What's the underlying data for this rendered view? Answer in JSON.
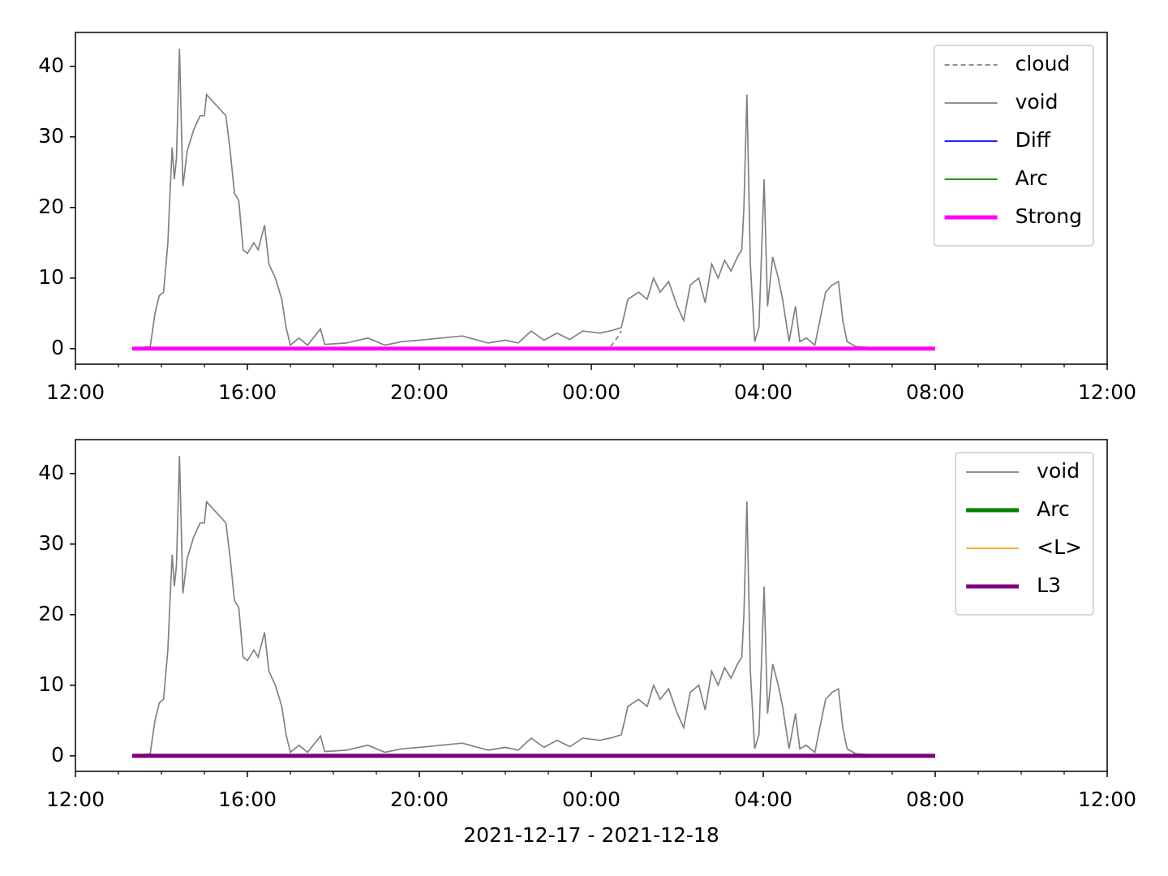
{
  "chart_data": [
    {
      "type": "line",
      "xlim": [
        12,
        36
      ],
      "xticks": [
        {
          "value": 12,
          "label": "12:00"
        },
        {
          "value": 16,
          "label": "16:00"
        },
        {
          "value": 20,
          "label": "20:00"
        },
        {
          "value": 24,
          "label": "00:00"
        },
        {
          "value": 28,
          "label": "04:00"
        },
        {
          "value": 32,
          "label": "08:00"
        },
        {
          "value": 36,
          "label": "12:00"
        }
      ],
      "xminorticks": [
        13,
        14,
        15,
        17,
        18,
        19,
        21,
        22,
        23,
        25,
        26,
        27,
        29,
        30,
        31,
        33,
        34,
        35
      ],
      "ylim": [
        -2.2,
        44.8
      ],
      "yticks": [
        0,
        10,
        20,
        30,
        40
      ],
      "legend": "upper right",
      "series": [
        {
          "name": "cloud",
          "color": "#808080",
          "linewidth": 1.2,
          "linestyle": "dashed",
          "x": [
            24.45,
            24.6,
            24.7
          ],
          "values": [
            0.3,
            1.5,
            2.5
          ]
        },
        {
          "name": "void",
          "color": "#808080",
          "linewidth": 1.2,
          "linestyle": "solid",
          "x": [
            13.32,
            13.74,
            13.85,
            13.95,
            14.05,
            14.15,
            14.2,
            14.25,
            14.3,
            14.35,
            14.42,
            14.5,
            14.6,
            14.75,
            14.9,
            15.0,
            15.05,
            15.2,
            15.35,
            15.5,
            15.6,
            15.7,
            15.8,
            15.9,
            16.0,
            16.15,
            16.25,
            16.4,
            16.5,
            16.65,
            16.8,
            16.9,
            17.0,
            17.2,
            17.4,
            17.7,
            17.8,
            18.3,
            18.8,
            19.2,
            19.6,
            20.0,
            20.5,
            21.0,
            21.3,
            21.6,
            22.0,
            22.3,
            22.6,
            22.9,
            23.2,
            23.5,
            23.8,
            24.2,
            24.5,
            24.7,
            24.85,
            25.1,
            25.3,
            25.45,
            25.6,
            25.8,
            26.0,
            26.15,
            26.3,
            26.5,
            26.65,
            26.8,
            26.95,
            27.1,
            27.25,
            27.4,
            27.5,
            27.55,
            27.62,
            27.7,
            27.8,
            27.9,
            28.02,
            28.1,
            28.22,
            28.35,
            28.45,
            28.6,
            28.75,
            28.85,
            29.0,
            29.2,
            29.45,
            29.6,
            29.75,
            29.85,
            29.95,
            30.15,
            30.6,
            31.0,
            32.0
          ],
          "values": [
            0,
            0.3,
            5,
            7.5,
            8,
            15,
            22,
            28.5,
            24,
            27,
            42.5,
            23,
            28,
            31,
            33,
            33,
            36,
            35,
            34,
            33,
            28,
            22,
            21,
            14,
            13.5,
            15,
            14,
            17.5,
            12,
            10,
            7,
            3,
            0.5,
            1.5,
            0.5,
            2.8,
            0.6,
            0.8,
            1.5,
            0.5,
            1,
            1.2,
            1.5,
            1.8,
            1.3,
            0.8,
            1.2,
            0.8,
            2.5,
            1.2,
            2.2,
            1.3,
            2.5,
            2.2,
            2.6,
            3,
            7,
            8,
            7,
            10,
            8,
            9.5,
            6,
            4,
            9,
            10,
            6.5,
            12,
            10,
            12.5,
            11,
            13,
            14,
            20,
            36,
            12,
            1,
            3,
            24,
            6,
            13,
            10,
            7,
            1,
            6,
            1,
            1.5,
            0.5,
            8,
            9,
            9.5,
            4,
            1,
            0.3,
            0.1,
            0,
            0
          ]
        },
        {
          "name": "Diff",
          "color": "#0000ff",
          "linewidth": 1.2,
          "linestyle": "solid",
          "x": [
            13.32,
            32.0
          ],
          "values": [
            0,
            0
          ]
        },
        {
          "name": "Arc",
          "color": "#008000",
          "linewidth": 1.2,
          "linestyle": "solid",
          "x": [
            13.32,
            32.0
          ],
          "values": [
            0,
            0
          ]
        },
        {
          "name": "Strong",
          "color": "#ff00ff",
          "linewidth": 3.5,
          "linestyle": "solid",
          "x": [
            13.32,
            32.0
          ],
          "values": [
            0,
            0
          ]
        }
      ]
    },
    {
      "type": "line",
      "xlabel": "2021-12-17 - 2021-12-18",
      "xlim": [
        12,
        36
      ],
      "xticks": [
        {
          "value": 12,
          "label": "12:00"
        },
        {
          "value": 16,
          "label": "16:00"
        },
        {
          "value": 20,
          "label": "20:00"
        },
        {
          "value": 24,
          "label": "00:00"
        },
        {
          "value": 28,
          "label": "04:00"
        },
        {
          "value": 32,
          "label": "08:00"
        },
        {
          "value": 36,
          "label": "12:00"
        }
      ],
      "xminorticks": [
        13,
        14,
        15,
        17,
        18,
        19,
        21,
        22,
        23,
        25,
        26,
        27,
        29,
        30,
        31,
        33,
        34,
        35
      ],
      "ylim": [
        -2.2,
        44.8
      ],
      "yticks": [
        0,
        10,
        20,
        30,
        40
      ],
      "legend": "upper right",
      "series": [
        {
          "name": "void",
          "color": "#808080",
          "linewidth": 1.2,
          "linestyle": "solid",
          "x": [
            13.32,
            13.74,
            13.85,
            13.95,
            14.05,
            14.15,
            14.2,
            14.25,
            14.3,
            14.35,
            14.42,
            14.5,
            14.6,
            14.75,
            14.9,
            15.0,
            15.05,
            15.2,
            15.35,
            15.5,
            15.6,
            15.7,
            15.8,
            15.9,
            16.0,
            16.15,
            16.25,
            16.4,
            16.5,
            16.65,
            16.8,
            16.9,
            17.0,
            17.2,
            17.4,
            17.7,
            17.8,
            18.3,
            18.8,
            19.2,
            19.6,
            20.0,
            20.5,
            21.0,
            21.3,
            21.6,
            22.0,
            22.3,
            22.6,
            22.9,
            23.2,
            23.5,
            23.8,
            24.2,
            24.5,
            24.7,
            24.85,
            25.1,
            25.3,
            25.45,
            25.6,
            25.8,
            26.0,
            26.15,
            26.3,
            26.5,
            26.65,
            26.8,
            26.95,
            27.1,
            27.25,
            27.4,
            27.5,
            27.55,
            27.62,
            27.7,
            27.8,
            27.9,
            28.02,
            28.1,
            28.22,
            28.35,
            28.45,
            28.6,
            28.75,
            28.85,
            29.0,
            29.2,
            29.45,
            29.6,
            29.75,
            29.85,
            29.95,
            30.15,
            30.6,
            31.0,
            32.0
          ],
          "values": [
            0,
            0.3,
            5,
            7.5,
            8,
            15,
            22,
            28.5,
            24,
            27,
            42.5,
            23,
            28,
            31,
            33,
            33,
            36,
            35,
            34,
            33,
            28,
            22,
            21,
            14,
            13.5,
            15,
            14,
            17.5,
            12,
            10,
            7,
            3,
            0.5,
            1.5,
            0.5,
            2.8,
            0.6,
            0.8,
            1.5,
            0.5,
            1,
            1.2,
            1.5,
            1.8,
            1.3,
            0.8,
            1.2,
            0.8,
            2.5,
            1.2,
            2.2,
            1.3,
            2.5,
            2.2,
            2.6,
            3,
            7,
            8,
            7,
            10,
            8,
            9.5,
            6,
            4,
            9,
            10,
            6.5,
            12,
            10,
            12.5,
            11,
            13,
            14,
            20,
            36,
            12,
            1,
            3,
            24,
            6,
            13,
            10,
            7,
            1,
            6,
            1,
            1.5,
            0.5,
            8,
            9,
            9.5,
            4,
            1,
            0.3,
            0.1,
            0,
            0
          ]
        },
        {
          "name": "Arc",
          "color": "#008000",
          "linewidth": 3.5,
          "linestyle": "solid",
          "x": [
            13.32,
            32.0
          ],
          "values": [
            0,
            0
          ]
        },
        {
          "name": "<L>",
          "color": "#ffa500",
          "linewidth": 1.2,
          "linestyle": "solid",
          "x": [
            13.32,
            32.0
          ],
          "values": [
            0,
            0
          ]
        },
        {
          "name": "L3",
          "color": "#800080",
          "linewidth": 3.5,
          "linestyle": "solid",
          "x": [
            13.32,
            32.0
          ],
          "values": [
            0,
            0
          ]
        }
      ]
    }
  ]
}
